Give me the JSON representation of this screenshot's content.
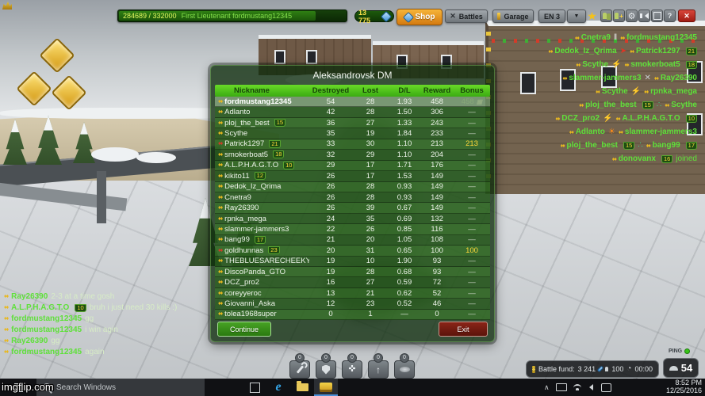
{
  "top_bar": {
    "xp_text": "284689 / 332000",
    "rank_player": "First Lieutenant fordmustang12345",
    "crystals": "13 775",
    "shop_label": "Shop",
    "battles_label": "Battles",
    "garage_label": "Garage",
    "lang_label": "EN 3",
    "icons": [
      {
        "name": "star"
      },
      {
        "name": "friends"
      },
      {
        "name": "add-friend"
      },
      {
        "name": "settings"
      },
      {
        "name": "sound"
      },
      {
        "name": "fullscreen"
      },
      {
        "name": "help"
      },
      {
        "name": "close"
      }
    ]
  },
  "scoreboard": {
    "title": "Aleksandrovsk DM",
    "columns": {
      "nickname": "Nickname",
      "destroyed": "Destroyed",
      "lost": "Lost",
      "dl": "D/L",
      "reward": "Reward",
      "bonus": "Bonus"
    },
    "rows": [
      {
        "name": "fordmustang12345",
        "badge": "",
        "destroyed": "54",
        "lost": "28",
        "dl": "1.93",
        "reward": "458",
        "bonus": "458",
        "self": true,
        "rank": "gold",
        "bonus_muted": true,
        "bonus_icon": true
      },
      {
        "name": "Adlanto",
        "badge": "",
        "destroyed": "42",
        "lost": "28",
        "dl": "1.50",
        "reward": "306",
        "bonus": "—",
        "rank": "gold"
      },
      {
        "name": "ploj_the_best",
        "badge": "15",
        "destroyed": "36",
        "lost": "27",
        "dl": "1.33",
        "reward": "243",
        "bonus": "—",
        "rank": "gold"
      },
      {
        "name": "Scythe",
        "badge": "",
        "destroyed": "35",
        "lost": "19",
        "dl": "1.84",
        "reward": "233",
        "bonus": "—",
        "rank": "gold"
      },
      {
        "name": "Patrick1297",
        "badge": "21",
        "destroyed": "33",
        "lost": "30",
        "dl": "1.10",
        "reward": "213",
        "bonus": "213",
        "rank": "red",
        "bonus_gold": true
      },
      {
        "name": "smokerboat5",
        "badge": "18",
        "destroyed": "32",
        "lost": "29",
        "dl": "1.10",
        "reward": "204",
        "bonus": "—",
        "rank": "gold"
      },
      {
        "name": "A.L.P.H.A.G.T.O",
        "badge": "10",
        "destroyed": "29",
        "lost": "17",
        "dl": "1.71",
        "reward": "176",
        "bonus": "—",
        "rank": "gold"
      },
      {
        "name": "kikito11",
        "badge": "12",
        "destroyed": "26",
        "lost": "17",
        "dl": "1.53",
        "reward": "149",
        "bonus": "—",
        "rank": "gold"
      },
      {
        "name": "Dedok_Iz_Qrima",
        "badge": "",
        "destroyed": "26",
        "lost": "28",
        "dl": "0.93",
        "reward": "149",
        "bonus": "—",
        "rank": "gold"
      },
      {
        "name": "Cnetra9",
        "badge": "",
        "destroyed": "26",
        "lost": "28",
        "dl": "0.93",
        "reward": "149",
        "bonus": "—",
        "rank": "gold"
      },
      {
        "name": "Ray26390",
        "badge": "",
        "destroyed": "26",
        "lost": "39",
        "dl": "0.67",
        "reward": "149",
        "bonus": "—",
        "rank": "gold"
      },
      {
        "name": "rpnka_mega",
        "badge": "",
        "destroyed": "24",
        "lost": "35",
        "dl": "0.69",
        "reward": "132",
        "bonus": "—",
        "rank": "gold"
      },
      {
        "name": "slammer-jammers3",
        "badge": "",
        "destroyed": "22",
        "lost": "26",
        "dl": "0.85",
        "reward": "116",
        "bonus": "—",
        "rank": "gold"
      },
      {
        "name": "bang99",
        "badge": "17",
        "destroyed": "21",
        "lost": "20",
        "dl": "1.05",
        "reward": "108",
        "bonus": "—",
        "rank": "gold"
      },
      {
        "name": "goldhunnas",
        "badge": "23",
        "destroyed": "20",
        "lost": "31",
        "dl": "0.65",
        "reward": "100",
        "bonus": "100",
        "rank": "red",
        "bonus_gold": true
      },
      {
        "name": "THEBLUESARECHEEKY",
        "badge": "",
        "destroyed": "19",
        "lost": "10",
        "dl": "1.90",
        "reward": "93",
        "bonus": "—",
        "rank": "gold"
      },
      {
        "name": "DiscoPanda_GTO",
        "badge": "",
        "destroyed": "19",
        "lost": "28",
        "dl": "0.68",
        "reward": "93",
        "bonus": "—",
        "rank": "gold"
      },
      {
        "name": "DCZ_pro2",
        "badge": "",
        "destroyed": "16",
        "lost": "27",
        "dl": "0.59",
        "reward": "72",
        "bonus": "—",
        "rank": "gold"
      },
      {
        "name": "coreyyeroc",
        "badge": "",
        "destroyed": "13",
        "lost": "21",
        "dl": "0.62",
        "reward": "52",
        "bonus": "—",
        "rank": "gold"
      },
      {
        "name": "Giovanni_Aska",
        "badge": "",
        "destroyed": "12",
        "lost": "23",
        "dl": "0.52",
        "reward": "46",
        "bonus": "—",
        "rank": "gold"
      },
      {
        "name": "tolea1968super",
        "badge": "",
        "destroyed": "0",
        "lost": "1",
        "dl": "—",
        "reward": "0",
        "bonus": "—",
        "rank": "gold"
      }
    ],
    "continue_label": "Continue",
    "exit_label": "Exit"
  },
  "chat": {
    "messages": [
      {
        "name": "Ray26390",
        "badge": "",
        "text": "2-3 at a time gosh"
      },
      {
        "name": "A.L.P.H.A.G.T.O",
        "badge": "10",
        "text": "bruh i just need 30 kills :)"
      },
      {
        "name": "fordmustang12345",
        "badge": "",
        "text": "gg"
      },
      {
        "name": "fordmustang12345",
        "badge": "",
        "text": "i win agin"
      },
      {
        "name": "Ray26390",
        "badge": "",
        "text": "gg"
      },
      {
        "name": "fordmustang12345",
        "badge": "",
        "text": "again"
      }
    ]
  },
  "kill_feed": {
    "entries": [
      {
        "killer": "Cnetra9",
        "killer_badge": "",
        "weapon": "hammer",
        "victim": "fordmustang12345",
        "victim_badge": "",
        "note": ""
      },
      {
        "killer": "Dedok_Iz_Qrima",
        "killer_badge": "",
        "weapon": "railgun",
        "victim": "Patrick1297",
        "victim_badge": "21",
        "note": ""
      },
      {
        "killer": "Scythe",
        "killer_badge": "",
        "weapon": "lightning",
        "victim": "smokerboat5",
        "victim_badge": "18",
        "note": ""
      },
      {
        "killer": "slammer-jammers3",
        "killer_badge": "",
        "weapon": "twins",
        "victim": "Ray26390",
        "victim_badge": "",
        "note": ""
      },
      {
        "killer": "Scythe",
        "killer_badge": "",
        "weapon": "lightning",
        "victim": "rpnka_mega",
        "victim_badge": "",
        "note": ""
      },
      {
        "killer": "ploj_the_best",
        "killer_badge": "15",
        "weapon": "smoky",
        "victim": "Scythe",
        "victim_badge": "",
        "note": ""
      },
      {
        "killer": "DCZ_pro2",
        "killer_badge": "",
        "weapon": "lightning",
        "victim": "A.L.P.H.A.G.T.O",
        "victim_badge": "10",
        "note": ""
      },
      {
        "killer": "Adlanto",
        "killer_badge": "",
        "weapon": "firebird",
        "victim": "slammer-jammers3",
        "victim_badge": "",
        "note": ""
      },
      {
        "killer": "ploj_the_best",
        "killer_badge": "15",
        "weapon": "smoky",
        "victim": "bang99",
        "victim_badge": "17",
        "note": ""
      },
      {
        "killer": "",
        "killer_badge": "",
        "weapon": "",
        "victim": "donovanx",
        "victim_badge": "16",
        "note": "joined"
      }
    ]
  },
  "supplies": {
    "items": [
      {
        "name": "repair-kit",
        "count": "0"
      },
      {
        "name": "double-armor",
        "count": "0"
      },
      {
        "name": "double-damage",
        "count": "0"
      },
      {
        "name": "nitro",
        "count": "0"
      },
      {
        "name": "mine",
        "count": "0"
      }
    ]
  },
  "hud": {
    "battle_fund_label": "Battle fund:",
    "battle_fund_value": "3 241",
    "capacity": "100",
    "timer": "00:00",
    "online": "54",
    "ping_label": "PING"
  },
  "taskbar": {
    "search_placeholder": "Search Windows",
    "time": "8:52 PM",
    "date": "12/25/2016"
  },
  "watermark": "imgflip.com",
  "colors": {
    "accent_green": "#4cc41d",
    "bonus_gold": "#ffd83a",
    "chat_green": "#5fe03a",
    "shop_orange": "#e8951f",
    "exit_red": "#7a1f12"
  }
}
